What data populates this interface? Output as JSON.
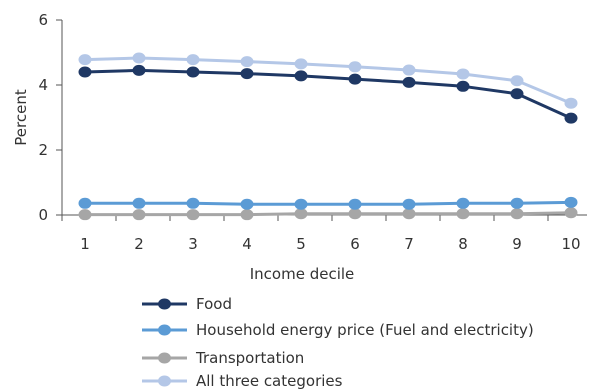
{
  "chart_data": {
    "type": "line",
    "title": "",
    "xlabel": "Income decile",
    "ylabel": "Percent",
    "x": [
      1,
      2,
      3,
      4,
      5,
      6,
      7,
      8,
      9,
      10
    ],
    "x_tick_labels": [
      "1",
      "2",
      "3",
      "4",
      "5",
      "6",
      "7",
      "8",
      "9",
      "10"
    ],
    "ylim": [
      0,
      6
    ],
    "y_ticks": [
      0,
      2,
      4,
      6
    ],
    "y_tick_labels": [
      "0",
      "2",
      "4",
      "6"
    ],
    "grid": false,
    "legend_position": "bottom",
    "series": [
      {
        "name": "Food",
        "color": "#1f3864",
        "values": [
          4.4,
          4.45,
          4.4,
          4.35,
          4.28,
          4.18,
          4.08,
          3.96,
          3.73,
          2.98
        ]
      },
      {
        "name": "Household energy price (Fuel and electricity)",
        "color": "#5b9bd5",
        "values": [
          0.36,
          0.36,
          0.36,
          0.33,
          0.33,
          0.33,
          0.33,
          0.36,
          0.36,
          0.39
        ]
      },
      {
        "name": "Transportation",
        "color": "#a6a6a6",
        "values": [
          0.01,
          0.01,
          0.01,
          0.01,
          0.04,
          0.04,
          0.04,
          0.04,
          0.04,
          0.07
        ]
      },
      {
        "name": "All three categories",
        "color": "#b4c7e7",
        "values": [
          4.78,
          4.83,
          4.78,
          4.72,
          4.65,
          4.56,
          4.46,
          4.34,
          4.13,
          3.44
        ]
      }
    ]
  }
}
